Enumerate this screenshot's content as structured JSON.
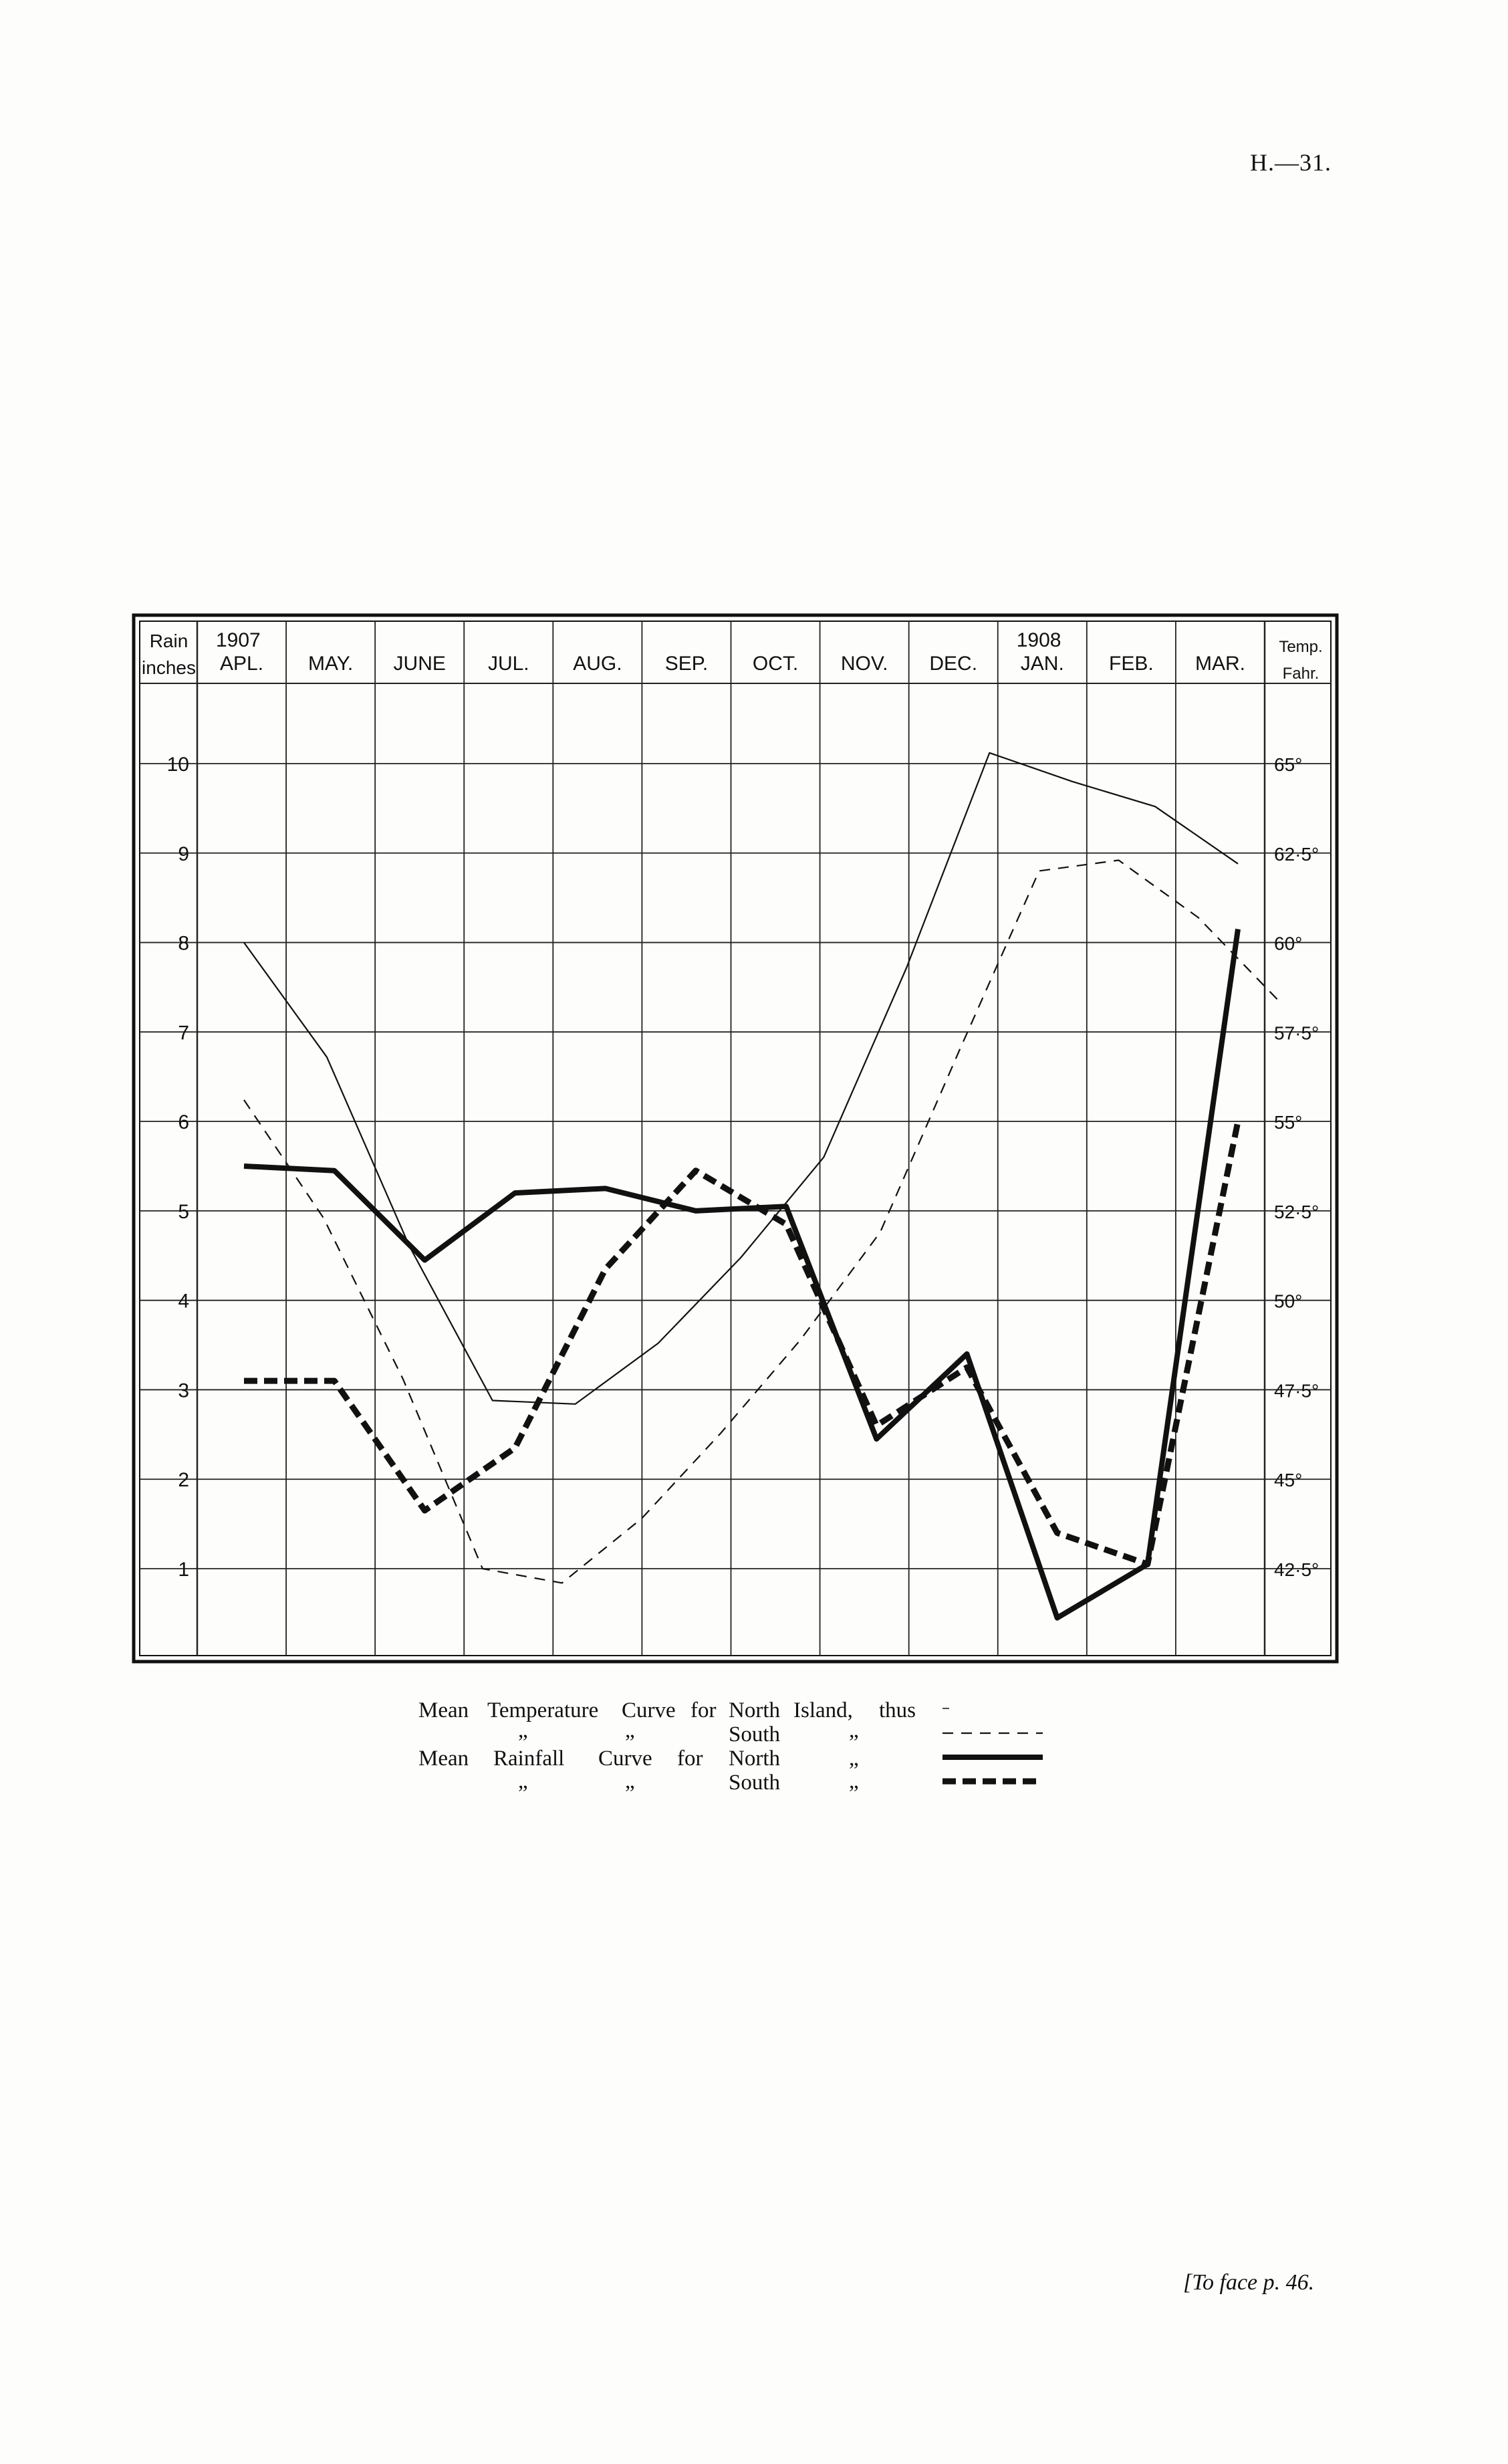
{
  "page": {
    "number": "H.—31.",
    "footer": "[To face p. 46."
  },
  "chart_data": {
    "type": "line",
    "title": "",
    "left_axis": {
      "label_line1": "Rain",
      "label_line2": "inches",
      "ticks": [
        "1",
        "2",
        "3",
        "4",
        "5",
        "6",
        "7",
        "8",
        "9",
        "10"
      ],
      "range": [
        0,
        11
      ]
    },
    "right_axis": {
      "label_line1": "Temp.",
      "label_line2": "Fahr.",
      "ticks": [
        "42·5°",
        "45°",
        "47·5°",
        "50°",
        "52·5°",
        "55°",
        "57·5°",
        "60°",
        "62·5°",
        "65°"
      ],
      "range": [
        40,
        67.5
      ]
    },
    "year_labels": [
      {
        "text": "1907",
        "month_index": 0
      },
      {
        "text": "1908",
        "month_index": 9
      }
    ],
    "categories": [
      "APL.",
      "MAY.",
      "JUNE",
      "JUL.",
      "AUG.",
      "SEP.",
      "OCT.",
      "NOV.",
      "DEC.",
      "JAN.",
      "FEB.",
      "MAR."
    ],
    "series": [
      {
        "name": "Mean Temperature Curve for North Island",
        "axis": "temperature",
        "style": "thin-solid",
        "points": [
          [
            0,
            60
          ],
          [
            1,
            56.8
          ],
          [
            2,
            51.5
          ],
          [
            3,
            47.2
          ],
          [
            4,
            47.1
          ],
          [
            5,
            48.8
          ],
          [
            6,
            51.2
          ],
          [
            7,
            54
          ],
          [
            8,
            59.3
          ],
          [
            9,
            65.3
          ],
          [
            10,
            64.5
          ],
          [
            11,
            63.8
          ],
          [
            12,
            62.2
          ]
        ]
      },
      {
        "name": "Mean Temperature Curve for South Island",
        "axis": "temperature",
        "style": "thin-dashed",
        "points": [
          [
            0,
            55.6
          ],
          [
            1,
            52.3
          ],
          [
            2,
            47.8
          ],
          [
            3,
            42.5
          ],
          [
            4,
            42.1
          ],
          [
            5,
            43.9
          ],
          [
            6,
            46.3
          ],
          [
            7,
            48.9
          ],
          [
            8,
            51.9
          ],
          [
            9,
            57
          ],
          [
            10,
            62
          ],
          [
            11,
            62.3
          ],
          [
            12,
            60.7
          ],
          [
            13,
            58.4
          ]
        ]
      },
      {
        "name": "Mean Rainfall Curve for North Island",
        "axis": "rainfall",
        "style": "heavy-solid",
        "points": [
          [
            0,
            5.5
          ],
          [
            1,
            5.45
          ],
          [
            2,
            4.45
          ],
          [
            3,
            5.2
          ],
          [
            4,
            5.25
          ],
          [
            5,
            5.0
          ],
          [
            6,
            5.05
          ],
          [
            7,
            2.45
          ],
          [
            8,
            3.4
          ],
          [
            9,
            0.45
          ],
          [
            10,
            1.05
          ],
          [
            11,
            8.15
          ]
        ]
      },
      {
        "name": "Mean Rainfall Curve for South Island",
        "axis": "rainfall",
        "style": "heavy-dashed",
        "points": [
          [
            0,
            3.1
          ],
          [
            1,
            3.1
          ],
          [
            2,
            1.65
          ],
          [
            3,
            2.35
          ],
          [
            4,
            4.35
          ],
          [
            5,
            5.45
          ],
          [
            6,
            4.85
          ],
          [
            7,
            2.6
          ],
          [
            8,
            3.25
          ],
          [
            9,
            1.4
          ],
          [
            10,
            1.05
          ],
          [
            11,
            6.0
          ]
        ]
      }
    ],
    "grid": true
  },
  "legend": {
    "rows": [
      {
        "words": [
          "Mean",
          "Temperature",
          "Curve",
          "for",
          "North",
          "Island,",
          "thus"
        ],
        "style": "thin-solid"
      },
      {
        "words": [
          "„",
          "„",
          "South",
          "„"
        ],
        "style": "thin-dashed"
      },
      {
        "words": [
          "Mean",
          "Rainfall",
          "Curve",
          "for",
          "North",
          "„"
        ],
        "style": "heavy-solid"
      },
      {
        "words": [
          "„",
          "„",
          "South",
          "„"
        ],
        "style": "heavy-dashed"
      }
    ]
  }
}
